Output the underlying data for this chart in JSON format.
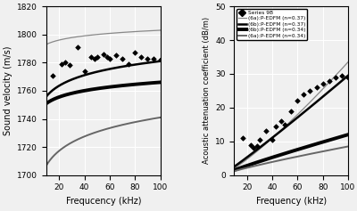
{
  "left_ylim": [
    1700,
    1820
  ],
  "right_ylim": [
    0,
    50
  ],
  "xlim": [
    10,
    100
  ],
  "xlabel": "Frequcency (kHz)",
  "xlabel2": "Frequency (kHz)",
  "left_ylabel": "Sound velocity (m/s)",
  "right_ylabel": "Acoustic attenuation coefficient (dB/m)",
  "scatter_vel_freq": [
    15,
    22,
    25,
    28,
    35,
    40,
    45,
    48,
    50,
    55,
    58,
    60,
    65,
    70,
    75,
    80,
    85,
    90,
    95,
    100
  ],
  "scatter_vel_vals": [
    1771,
    1779,
    1780,
    1778,
    1791,
    1774,
    1784,
    1783,
    1784,
    1786,
    1784,
    1783,
    1785,
    1783,
    1779,
    1787,
    1784,
    1783,
    1783,
    1782
  ],
  "scatter_att_freq": [
    17,
    23,
    25,
    28,
    30,
    35,
    40,
    43,
    47,
    50,
    55,
    60,
    65,
    70,
    75,
    80,
    85,
    90,
    95,
    100
  ],
  "scatter_att_vals": [
    11,
    9,
    8,
    8.5,
    10.5,
    13,
    10.5,
    14.5,
    16,
    15,
    19,
    22,
    24,
    25,
    26,
    27,
    28,
    29,
    29.5,
    29
  ],
  "legend_labels": [
    "Series 9B",
    "(6a):P-EDFM (n=0.37)",
    "(6b):P-EDFM (n=0.37)",
    "(6b):P-EDFM (n=0.34)",
    "(6a):P-EDFM (n=0.34)"
  ],
  "line_styles_vel": [
    {
      "color": "#888888",
      "lw": 0.9,
      "v10": 1793,
      "v100": 1803
    },
    {
      "color": "#000000",
      "lw": 1.8,
      "v10": 1756,
      "v100": 1781
    },
    {
      "color": "#000000",
      "lw": 2.8,
      "v10": 1751,
      "v100": 1766
    },
    {
      "color": "#666666",
      "lw": 1.4,
      "v10": 1707,
      "v100": 1741
    }
  ],
  "line_styles_att": [
    {
      "color": "#888888",
      "lw": 0.9,
      "a10": 2.0,
      "a100": 33.5
    },
    {
      "color": "#000000",
      "lw": 1.8,
      "a10": 2.5,
      "a100": 29.5
    },
    {
      "color": "#000000",
      "lw": 2.8,
      "a10": 1.5,
      "a100": 12.0
    },
    {
      "color": "#666666",
      "lw": 1.4,
      "a10": 1.2,
      "a100": 8.5
    }
  ],
  "background_color": "#f0f0f0",
  "grid_color": "#ffffff"
}
